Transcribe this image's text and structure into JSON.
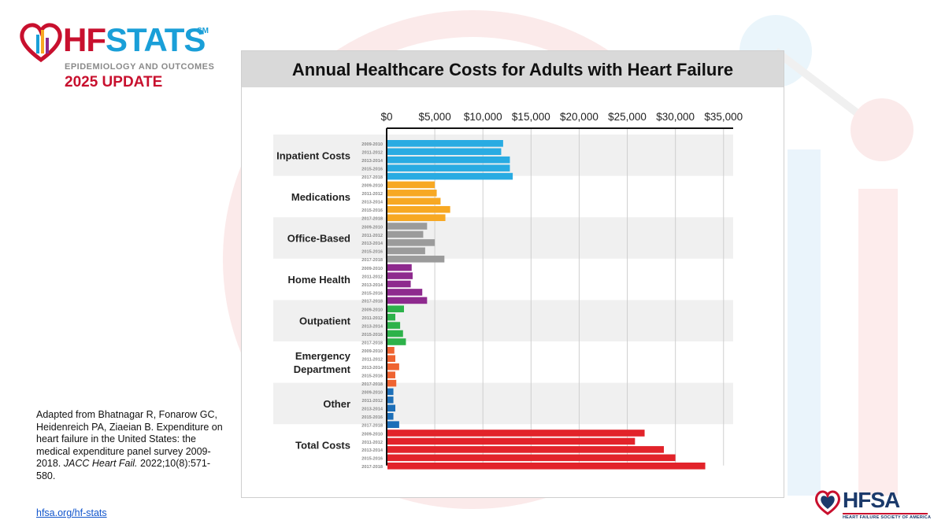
{
  "brand": {
    "logo_word_hf": "HF",
    "logo_word_stats": "STATS",
    "logo_sm": "SM",
    "subtitle": "EPIDEMIOLOGY AND OUTCOMES",
    "update": "2025 UPDATE",
    "colors": {
      "red": "#c8102e",
      "blue": "#1a9fd8",
      "navy": "#1b3a6b"
    }
  },
  "citation": {
    "text": "Adapted from Bhatnagar R, Fonarow GC, Heidenreich PA, Ziaeian B. Expenditure on heart failure in the United States: the medical expenditure panel survey 2009-2018.",
    "journal": "JACC Heart Fail.",
    "ref": "2022;10(8):571-580."
  },
  "link": "hfsa.org/hf-stats",
  "footer_logo": {
    "name": "HFSA",
    "tagline": "HEART FAILURE SOCIETY OF AMERICA"
  },
  "chart_data": {
    "type": "bar",
    "orientation": "horizontal",
    "title": "Annual Healthcare Costs for Adults with Heart Failure",
    "x_axis": {
      "range": [
        0,
        36000
      ],
      "ticks": [
        0,
        5000,
        10000,
        15000,
        20000,
        25000,
        30000,
        35000
      ],
      "tick_labels": [
        "$0",
        "$5,000",
        "$10,000",
        "$15,000",
        "$20,000",
        "$25,000",
        "$30,000",
        "$35,000"
      ],
      "position": "top"
    },
    "grid": true,
    "periods": [
      "2009-2010",
      "2011-2012",
      "2013-2014",
      "2015-2016",
      "2017-2018"
    ],
    "groups": [
      {
        "label": [
          "Inpatient Costs"
        ],
        "color": "#29abe2",
        "shaded": true,
        "values": [
          12100,
          11900,
          12800,
          12800,
          13100
        ]
      },
      {
        "label": [
          "Medications"
        ],
        "color": "#f7a823",
        "shaded": false,
        "values": [
          5000,
          5200,
          5600,
          6600,
          6100
        ]
      },
      {
        "label": [
          "Office-Based"
        ],
        "color": "#9b9b9b",
        "shaded": true,
        "values": [
          4200,
          3800,
          5000,
          4000,
          6000
        ]
      },
      {
        "label": [
          "Home Health"
        ],
        "color": "#8e2a8e",
        "shaded": false,
        "values": [
          2600,
          2700,
          2500,
          3700,
          4200
        ]
      },
      {
        "label": [
          "Outpatient"
        ],
        "color": "#2db24a",
        "shaded": true,
        "values": [
          1800,
          900,
          1400,
          1700,
          2000
        ]
      },
      {
        "label": [
          "Emergency",
          "Department"
        ],
        "color": "#ef6330",
        "shaded": false,
        "values": [
          800,
          900,
          1300,
          900,
          1000
        ]
      },
      {
        "label": [
          "Other"
        ],
        "color": "#1d6fb8",
        "shaded": true,
        "values": [
          700,
          700,
          900,
          700,
          1300
        ]
      },
      {
        "label": [
          "Total Costs"
        ],
        "color": "#e2232a",
        "shaded": false,
        "values": [
          26800,
          25800,
          28800,
          30000,
          33100
        ]
      }
    ]
  }
}
